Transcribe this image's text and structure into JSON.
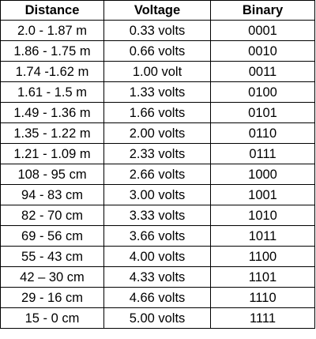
{
  "table": {
    "headers": [
      "Distance",
      "Voltage",
      "Binary"
    ],
    "rows": [
      [
        "2.0 - 1.87 m",
        "0.33 volts",
        "0001"
      ],
      [
        "1.86 - 1.75 m",
        "0.66 volts",
        "0010"
      ],
      [
        "1.74 -1.62 m",
        "1.00 volt",
        "0011"
      ],
      [
        "1.61 - 1.5 m",
        "1.33 volts",
        "0100"
      ],
      [
        "1.49 - 1.36 m",
        "1.66 volts",
        "0101"
      ],
      [
        "1.35 - 1.22 m",
        "2.00 volts",
        "0110"
      ],
      [
        "1.21 - 1.09 m",
        "2.33 volts",
        "0111"
      ],
      [
        "108 - 95 cm",
        "2.66 volts",
        "1000"
      ],
      [
        "94 - 83 cm",
        "3.00 volts",
        "1001"
      ],
      [
        "82 - 70 cm",
        "3.33 volts",
        "1010"
      ],
      [
        "69 - 56 cm",
        "3.66 volts",
        "1011"
      ],
      [
        "55 - 43 cm",
        "4.00 volts",
        "1100"
      ],
      [
        "42 – 30 cm",
        "4.33 volts",
        "1101"
      ],
      [
        "29 - 16 cm",
        "4.66 volts",
        "1110"
      ],
      [
        "15 - 0 cm",
        "5.00 volts",
        "1111"
      ]
    ]
  }
}
